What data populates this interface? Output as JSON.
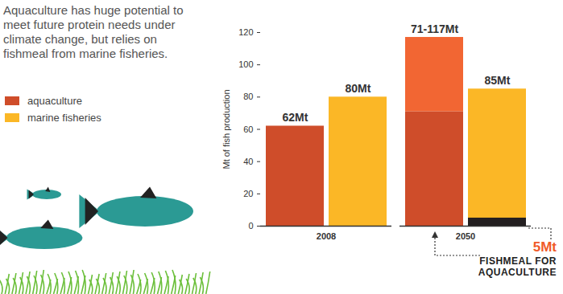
{
  "chart_data": {
    "type": "bar",
    "title": "Aquaculture has huge potential to meet future protein needs under climate change, but relies on fishmeal from marine fisheries.",
    "y_label": "Mt of fish production",
    "categories": [
      "2008",
      "2050"
    ],
    "series": [
      {
        "name": "aquaculture",
        "color": "#cf4d2a",
        "values": [
          62,
          71
        ],
        "value_labels": [
          "62Mt",
          "71-117Mt"
        ],
        "high": {
          "values": [
            null,
            117
          ],
          "color": "#f26633"
        }
      },
      {
        "name": "marine fisheries",
        "color": "#fbb726",
        "values": [
          80,
          85
        ],
        "value_labels": [
          "80Mt",
          "85Mt"
        ]
      }
    ],
    "annotation": {
      "text": "FISHMEAL FOR AQUACULTURE",
      "series": "marine fisheries",
      "values": [
        null,
        5
      ],
      "value_labels": [
        null,
        "5Mt"
      ],
      "color": "#231f20"
    },
    "ylim": [
      0,
      120
    ],
    "yticks": [
      0,
      20,
      40,
      60,
      80,
      100,
      120
    ],
    "data_labels": true,
    "legend": "left",
    "stacked": false
  }
}
